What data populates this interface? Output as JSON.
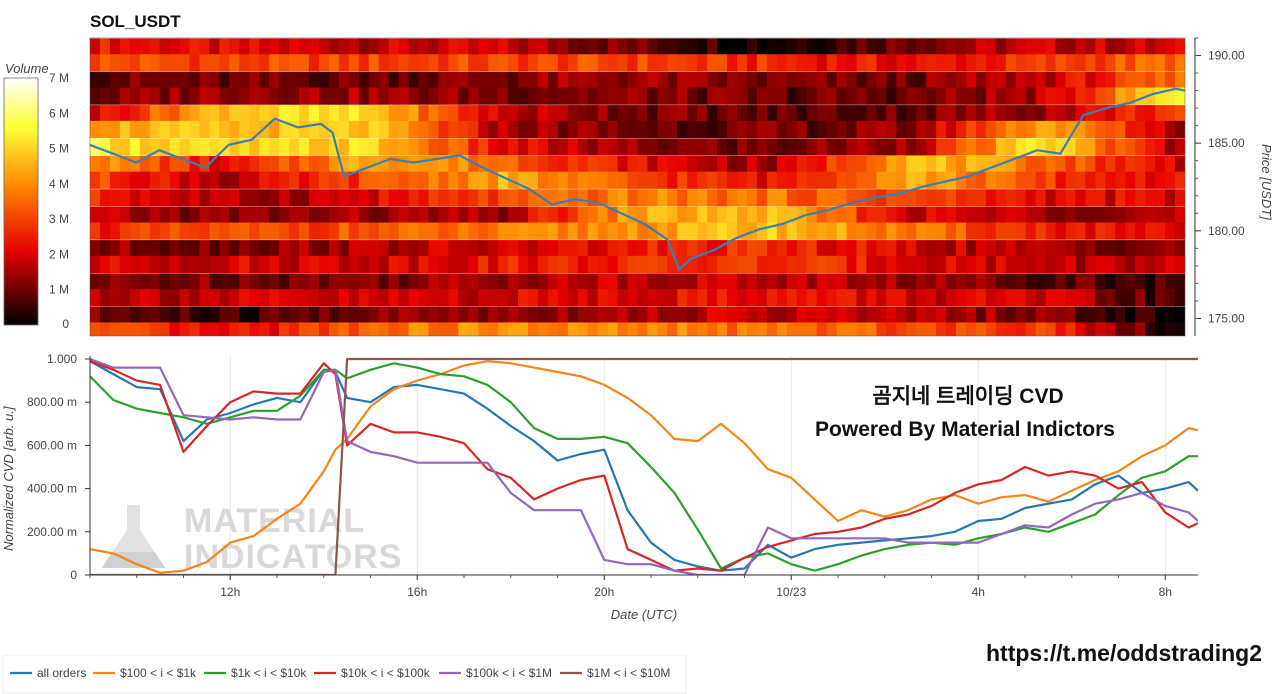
{
  "chart_data": [
    {
      "type": "heatmap",
      "title": "SOL_USDT",
      "colorbar": {
        "label": "Volume",
        "tick_labels": [
          "0",
          "1 M",
          "2 M",
          "3 M",
          "4 M",
          "5 M",
          "6 M",
          "7 M"
        ],
        "range": [
          0,
          7000000
        ],
        "colors": [
          "#000000",
          "#e60000",
          "#ff8000",
          "#ffff33",
          "#ffffff"
        ]
      },
      "y_axis": {
        "label": "Price [USDT]",
        "ticks": [
          "190.00",
          "185.00",
          "180.00",
          "175.00"
        ],
        "range": [
          174.0,
          191.0
        ]
      },
      "price_bands": [
        {
          "price": 190.5,
          "levels": [
            2.4,
            2.0,
            1.8,
            1.8,
            1.0,
            0.3,
            1.2,
            1.8,
            1.8
          ]
        },
        {
          "price": 189.6,
          "levels": [
            3.2,
            3.0,
            3.0,
            3.0,
            3.0,
            2.6,
            2.2,
            2.8,
            3.6
          ]
        },
        {
          "price": 188.6,
          "levels": [
            1.0,
            0.9,
            1.0,
            1.2,
            1.4,
            1.0,
            1.0,
            1.8,
            3.4
          ]
        },
        {
          "price": 187.7,
          "levels": [
            1.0,
            1.6,
            1.4,
            1.2,
            1.2,
            0.9,
            1.0,
            1.6,
            5.8
          ]
        },
        {
          "price": 186.7,
          "levels": [
            2.0,
            5.0,
            5.0,
            1.8,
            1.2,
            0.8,
            1.0,
            1.6,
            3.0
          ]
        },
        {
          "price": 185.8,
          "levels": [
            4.5,
            4.6,
            4.8,
            1.6,
            1.0,
            1.0,
            1.2,
            4.6,
            1.6
          ]
        },
        {
          "price": 184.8,
          "levels": [
            5.4,
            4.8,
            5.0,
            2.2,
            1.2,
            1.0,
            1.6,
            5.4,
            1.4
          ]
        },
        {
          "price": 183.8,
          "levels": [
            4.2,
            2.0,
            4.6,
            3.6,
            2.2,
            1.4,
            4.8,
            3.6,
            2.0
          ]
        },
        {
          "price": 182.9,
          "levels": [
            3.0,
            1.6,
            3.0,
            4.4,
            3.0,
            2.2,
            4.6,
            2.8,
            2.2
          ]
        },
        {
          "price": 181.9,
          "levels": [
            2.6,
            1.4,
            2.0,
            3.0,
            3.8,
            3.6,
            3.0,
            2.2,
            2.0
          ]
        },
        {
          "price": 180.9,
          "levels": [
            1.6,
            1.2,
            1.4,
            1.4,
            4.4,
            4.6,
            2.0,
            1.6,
            1.6
          ]
        },
        {
          "price": 180.0,
          "levels": [
            2.6,
            3.0,
            3.2,
            3.6,
            4.2,
            4.8,
            3.6,
            2.6,
            1.8
          ]
        },
        {
          "price": 179.0,
          "levels": [
            1.2,
            1.2,
            1.6,
            1.8,
            2.4,
            2.6,
            2.0,
            1.4,
            1.2
          ]
        },
        {
          "price": 178.1,
          "levels": [
            2.0,
            2.0,
            2.0,
            2.4,
            2.6,
            2.8,
            2.2,
            1.8,
            1.6
          ]
        },
        {
          "price": 177.1,
          "levels": [
            1.0,
            1.2,
            1.2,
            1.6,
            1.8,
            1.8,
            1.4,
            1.0,
            0.6
          ]
        },
        {
          "price": 176.2,
          "levels": [
            1.8,
            1.8,
            1.8,
            2.0,
            2.2,
            2.4,
            2.0,
            1.8,
            0.4
          ]
        },
        {
          "price": 175.2,
          "levels": [
            1.0,
            0.4,
            1.2,
            1.4,
            1.6,
            1.8,
            1.6,
            1.2,
            0.0
          ]
        },
        {
          "price": 174.3,
          "levels": [
            3.0,
            2.0,
            3.6,
            4.0,
            3.8,
            3.6,
            3.2,
            3.0,
            0.2
          ]
        }
      ],
      "price_line": {
        "name": "price",
        "color": "#3a7fb4",
        "x_hours": [
          9.0,
          9.5,
          10.0,
          10.5,
          11.0,
          11.5,
          12.0,
          12.5,
          13.0,
          13.5,
          14.0,
          14.25,
          14.5,
          15.0,
          15.5,
          16.0,
          16.5,
          17.0,
          17.5,
          18.0,
          18.5,
          19.0,
          19.5,
          20.0,
          20.5,
          21.0,
          21.5,
          21.75,
          22.0,
          22.5,
          23.0,
          23.5,
          24.0,
          24.5,
          25.0,
          25.5,
          26.0,
          26.5,
          27.0,
          27.5,
          28.0,
          28.5,
          29.0,
          29.5,
          30.0,
          30.5,
          31.0,
          31.5,
          32.0,
          32.5,
          32.7
        ],
        "y": [
          184.9,
          184.4,
          183.9,
          184.6,
          184.1,
          183.6,
          184.9,
          185.2,
          186.4,
          185.9,
          186.1,
          185.6,
          183.1,
          183.6,
          184.1,
          183.9,
          184.1,
          184.3,
          183.6,
          183.0,
          182.4,
          181.5,
          181.8,
          181.6,
          181.0,
          180.4,
          179.5,
          177.8,
          178.4,
          178.9,
          179.6,
          180.1,
          180.4,
          180.9,
          181.2,
          181.6,
          181.9,
          182.1,
          182.5,
          182.8,
          183.1,
          183.6,
          184.1,
          184.6,
          184.4,
          186.6,
          187.0,
          187.3,
          187.8,
          188.1,
          188.0
        ]
      }
    },
    {
      "type": "line",
      "xlabel": "Date (UTC)",
      "ylabel": "Normalized CVD [arb. u.]",
      "x_range": [
        9.0,
        32.7
      ],
      "x_ticks": [
        {
          "hour": 12,
          "label": "12h"
        },
        {
          "hour": 16,
          "label": "16h"
        },
        {
          "hour": 20,
          "label": "20h"
        },
        {
          "hour": 24,
          "label": "10/23"
        },
        {
          "hour": 28,
          "label": "4h"
        },
        {
          "hour": 32,
          "label": "8h"
        }
      ],
      "y_ticks": [
        "0",
        "200.00 m",
        "400.00 m",
        "600.00 m",
        "800.00 m",
        "1.000"
      ],
      "ylim": [
        0,
        1.0
      ],
      "grid": "x",
      "legend_position": "bottom",
      "x": [
        9.0,
        9.5,
        10.0,
        10.5,
        11.0,
        11.5,
        12.0,
        12.5,
        13.0,
        13.5,
        14.0,
        14.25,
        14.5,
        15.0,
        15.5,
        16.0,
        16.5,
        17.0,
        17.5,
        18.0,
        18.5,
        19.0,
        19.5,
        20.0,
        20.5,
        21.0,
        21.5,
        22.0,
        22.5,
        23.0,
        23.5,
        24.0,
        24.5,
        25.0,
        25.5,
        26.0,
        26.5,
        27.0,
        27.5,
        28.0,
        28.5,
        29.0,
        29.5,
        30.0,
        30.5,
        31.0,
        31.5,
        32.0,
        32.5,
        32.7
      ],
      "series": [
        {
          "name": "all orders",
          "color": "#2477b3",
          "values": [
            0.99,
            0.93,
            0.87,
            0.86,
            0.62,
            0.72,
            0.75,
            0.79,
            0.82,
            0.8,
            0.95,
            0.94,
            0.82,
            0.8,
            0.87,
            0.88,
            0.86,
            0.84,
            0.77,
            0.69,
            0.62,
            0.53,
            0.56,
            0.58,
            0.3,
            0.15,
            0.07,
            0.04,
            0.02,
            0.03,
            0.14,
            0.08,
            0.12,
            0.14,
            0.15,
            0.16,
            0.17,
            0.18,
            0.2,
            0.25,
            0.26,
            0.31,
            0.33,
            0.35,
            0.42,
            0.46,
            0.38,
            0.4,
            0.43,
            0.39
          ]
        },
        {
          "name": "$100 < i < $1k",
          "color": "#f58518",
          "values": [
            0.12,
            0.1,
            0.05,
            0.01,
            0.02,
            0.06,
            0.15,
            0.18,
            0.26,
            0.33,
            0.48,
            0.58,
            0.63,
            0.78,
            0.86,
            0.9,
            0.93,
            0.97,
            0.99,
            0.98,
            0.96,
            0.94,
            0.92,
            0.88,
            0.82,
            0.74,
            0.63,
            0.62,
            0.7,
            0.61,
            0.49,
            0.45,
            0.35,
            0.25,
            0.3,
            0.27,
            0.3,
            0.35,
            0.37,
            0.33,
            0.36,
            0.37,
            0.34,
            0.39,
            0.44,
            0.48,
            0.55,
            0.6,
            0.68,
            0.67
          ]
        },
        {
          "name": "$1k < i < $10k",
          "color": "#2ca02c",
          "values": [
            0.92,
            0.81,
            0.77,
            0.75,
            0.73,
            0.7,
            0.73,
            0.76,
            0.76,
            0.83,
            0.95,
            0.95,
            0.91,
            0.95,
            0.98,
            0.96,
            0.93,
            0.92,
            0.88,
            0.8,
            0.68,
            0.63,
            0.63,
            0.64,
            0.61,
            0.5,
            0.38,
            0.21,
            0.03,
            0.08,
            0.1,
            0.05,
            0.02,
            0.05,
            0.09,
            0.12,
            0.14,
            0.15,
            0.14,
            0.17,
            0.19,
            0.22,
            0.2,
            0.24,
            0.28,
            0.37,
            0.45,
            0.48,
            0.55,
            0.55
          ]
        },
        {
          "name": "$10k < i < $100k",
          "color": "#d62728",
          "values": [
            0.99,
            0.95,
            0.9,
            0.88,
            0.57,
            0.69,
            0.8,
            0.85,
            0.84,
            0.84,
            0.98,
            0.93,
            0.6,
            0.7,
            0.66,
            0.66,
            0.64,
            0.61,
            0.49,
            0.45,
            0.35,
            0.4,
            0.44,
            0.46,
            0.12,
            0.07,
            0.02,
            0.03,
            0.02,
            0.08,
            0.13,
            0.16,
            0.19,
            0.2,
            0.22,
            0.26,
            0.28,
            0.32,
            0.38,
            0.42,
            0.44,
            0.5,
            0.46,
            0.48,
            0.46,
            0.4,
            0.43,
            0.29,
            0.22,
            0.24
          ]
        },
        {
          "name": "$100k < i < $1M",
          "color": "#9467bd",
          "values": [
            1.0,
            0.96,
            0.96,
            0.96,
            0.74,
            0.73,
            0.72,
            0.73,
            0.72,
            0.72,
            0.94,
            0.95,
            0.62,
            0.57,
            0.55,
            0.52,
            0.52,
            0.52,
            0.52,
            0.38,
            0.3,
            0.3,
            0.3,
            0.07,
            0.05,
            0.05,
            0.02,
            0.0,
            0.0,
            0.0,
            0.22,
            0.17,
            0.17,
            0.17,
            0.17,
            0.17,
            0.15,
            0.15,
            0.15,
            0.15,
            0.19,
            0.23,
            0.22,
            0.28,
            0.33,
            0.35,
            0.38,
            0.32,
            0.29,
            0.25
          ]
        },
        {
          "name": "$1M < i < $10M",
          "color": "#8c564b",
          "values": [
            0.0,
            0.0,
            0.0,
            0.0,
            0.0,
            0.0,
            0.0,
            0.0,
            0.0,
            0.0,
            0.0,
            0.0,
            1.0,
            1.0,
            1.0,
            1.0,
            1.0,
            1.0,
            1.0,
            1.0,
            1.0,
            1.0,
            1.0,
            1.0,
            1.0,
            1.0,
            1.0,
            1.0,
            1.0,
            1.0,
            1.0,
            1.0,
            1.0,
            1.0,
            1.0,
            1.0,
            1.0,
            1.0,
            1.0,
            1.0,
            1.0,
            1.0,
            1.0,
            1.0,
            1.0,
            1.0,
            1.0,
            1.0,
            1.0,
            1.0
          ]
        }
      ],
      "annotations": [
        "곰지네 트레이딩 CVD",
        "Powered By Material Indictors"
      ],
      "watermark": [
        "MATERIAL",
        "INDICATORS"
      ]
    }
  ],
  "footer": {
    "url": "https://t.me/oddstrading2"
  }
}
